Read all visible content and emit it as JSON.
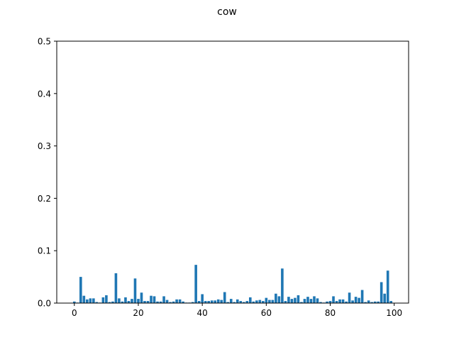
{
  "chart_data": {
    "type": "bar",
    "title": "cow",
    "xlabel": "",
    "ylabel": "",
    "xlim": [
      -5.5,
      104.5
    ],
    "ylim": [
      0,
      0.5
    ],
    "xticks": [
      0,
      20,
      40,
      60,
      80,
      100
    ],
    "yticks": [
      0.0,
      0.1,
      0.2,
      0.3,
      0.4,
      0.5
    ],
    "xtick_labels": [
      "0",
      "20",
      "40",
      "60",
      "80",
      "100"
    ],
    "ytick_labels": [
      "0.0",
      "0.1",
      "0.2",
      "0.3",
      "0.4",
      "0.5"
    ],
    "grid": false,
    "color": "#1f77b4",
    "x": [
      0,
      1,
      2,
      3,
      4,
      5,
      6,
      7,
      8,
      9,
      10,
      11,
      12,
      13,
      14,
      15,
      16,
      17,
      18,
      19,
      20,
      21,
      22,
      23,
      24,
      25,
      26,
      27,
      28,
      29,
      30,
      31,
      32,
      33,
      34,
      35,
      36,
      37,
      38,
      39,
      40,
      41,
      42,
      43,
      44,
      45,
      46,
      47,
      48,
      49,
      50,
      51,
      52,
      53,
      54,
      55,
      56,
      57,
      58,
      59,
      60,
      61,
      62,
      63,
      64,
      65,
      66,
      67,
      68,
      69,
      70,
      71,
      72,
      73,
      74,
      75,
      76,
      77,
      78,
      79,
      80,
      81,
      82,
      83,
      84,
      85,
      86,
      87,
      88,
      89,
      90,
      91,
      92,
      93,
      94,
      95,
      96,
      97,
      98,
      99
    ],
    "values": [
      0.003,
      0.001,
      0.05,
      0.014,
      0.007,
      0.009,
      0.009,
      0.002,
      0.001,
      0.011,
      0.015,
      0.002,
      0.003,
      0.057,
      0.009,
      0.003,
      0.011,
      0.004,
      0.008,
      0.047,
      0.008,
      0.02,
      0.004,
      0.004,
      0.014,
      0.013,
      0.003,
      0.003,
      0.013,
      0.006,
      0.002,
      0.003,
      0.007,
      0.007,
      0.003,
      0.001,
      0.001,
      0.002,
      0.073,
      0.004,
      0.017,
      0.004,
      0.004,
      0.005,
      0.005,
      0.007,
      0.006,
      0.021,
      0.002,
      0.008,
      0.002,
      0.007,
      0.004,
      0.002,
      0.004,
      0.011,
      0.003,
      0.005,
      0.006,
      0.004,
      0.01,
      0.006,
      0.006,
      0.018,
      0.013,
      0.066,
      0.004,
      0.012,
      0.008,
      0.01,
      0.015,
      0.002,
      0.008,
      0.012,
      0.008,
      0.013,
      0.009,
      0.002,
      0.001,
      0.003,
      0.004,
      0.013,
      0.004,
      0.007,
      0.007,
      0.003,
      0.02,
      0.005,
      0.012,
      0.01,
      0.025,
      0.002,
      0.005,
      0.002,
      0.003,
      0.003,
      0.04,
      0.018,
      0.062,
      0.004
    ]
  }
}
